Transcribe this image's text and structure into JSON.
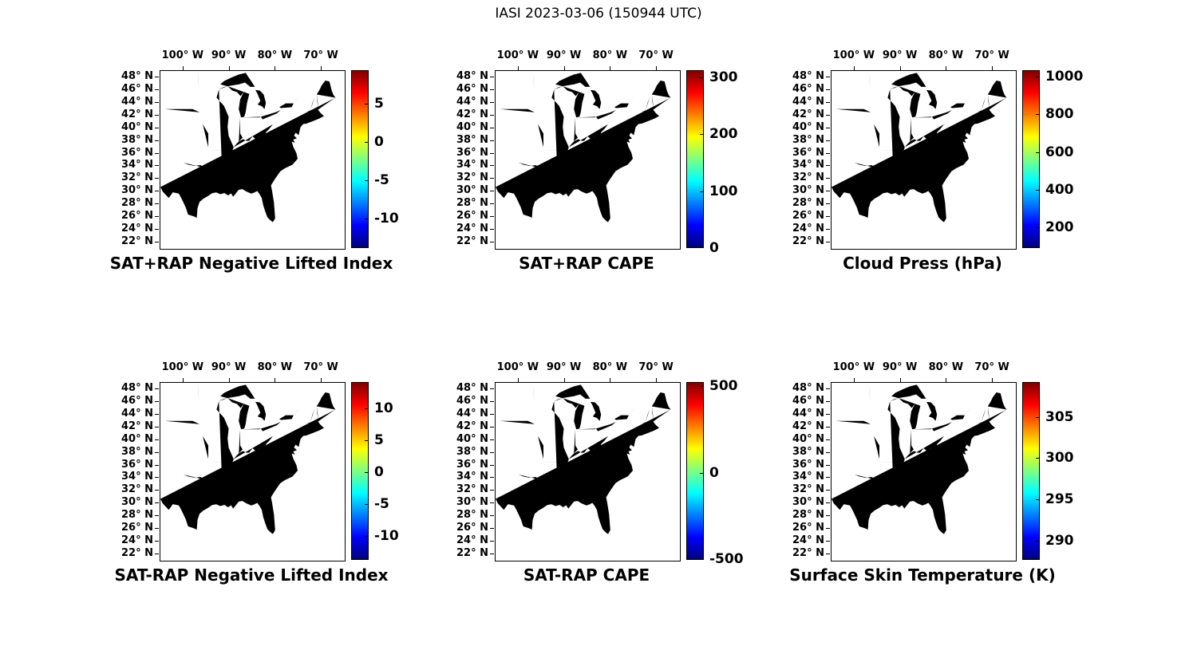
{
  "figure_title": "IASI 2023-03-06 (150944 UTC)",
  "map_axes": {
    "lon_labels": [
      "100° W",
      "90° W",
      "80° W",
      "70° W"
    ],
    "lon_values_w": [
      100,
      90,
      80,
      70
    ],
    "lon_range_w": [
      105,
      65
    ],
    "lat_labels": [
      "48° N",
      "46° N",
      "44° N",
      "42° N",
      "40° N",
      "38° N",
      "36° N",
      "34° N",
      "32° N",
      "30° N",
      "28° N",
      "26° N",
      "24° N",
      "22° N"
    ],
    "lat_values_n": [
      48,
      46,
      44,
      42,
      40,
      38,
      36,
      34,
      32,
      30,
      28,
      26,
      24,
      22
    ],
    "lat_range_n": [
      21,
      49
    ]
  },
  "colorbar_colors": [
    "#7f0000",
    "#ff0000",
    "#ffff00",
    "#00ffff",
    "#0000ff",
    "#00007f"
  ],
  "colorbar_stops_pct": [
    0,
    12.5,
    37.5,
    62.5,
    87.5,
    100
  ],
  "chart_data": [
    {
      "type": "map",
      "title": "SAT+RAP Negative Lifted Index",
      "region": "Eastern and Central United States with state boundaries",
      "data_points": [],
      "colorbar": {
        "colormap": "jet",
        "ticks": [
          5,
          0,
          -5,
          -10
        ],
        "range": [
          9.3,
          -13.8
        ]
      }
    },
    {
      "type": "map",
      "title": "SAT+RAP CAPE",
      "region": "Eastern and Central United States with state boundaries",
      "data_points": [],
      "colorbar": {
        "colormap": "jet",
        "ticks": [
          300,
          200,
          100,
          0
        ],
        "range": [
          312,
          0
        ]
      }
    },
    {
      "type": "map",
      "title": "Cloud Press (hPa)",
      "region": "Eastern and Central United States with state boundaries",
      "data_points": [],
      "colorbar": {
        "colormap": "jet",
        "ticks": [
          1000,
          800,
          600,
          400,
          200
        ],
        "range": [
          1034,
          92
        ]
      }
    },
    {
      "type": "map",
      "title": "SAT-RAP Negative Lifted Index",
      "region": "Eastern and Central United States with state boundaries",
      "data_points": [],
      "colorbar": {
        "colormap": "jet",
        "ticks": [
          10,
          5,
          0,
          -5,
          -10
        ],
        "range": [
          14.1,
          -13.8
        ]
      }
    },
    {
      "type": "map",
      "title": "SAT-RAP CAPE",
      "region": "Eastern and Central United States with state boundaries",
      "data_points": [],
      "colorbar": {
        "colormap": "jet",
        "ticks": [
          500,
          0,
          -500
        ],
        "range": [
          523,
          -504
        ]
      }
    },
    {
      "type": "map",
      "title": "Surface Skin Temperature (K)",
      "region": "Eastern and Central United States with state boundaries",
      "data_points": [],
      "colorbar": {
        "colormap": "jet",
        "ticks": [
          305,
          300,
          295,
          290
        ],
        "range": [
          309.2,
          287.7
        ]
      }
    }
  ]
}
